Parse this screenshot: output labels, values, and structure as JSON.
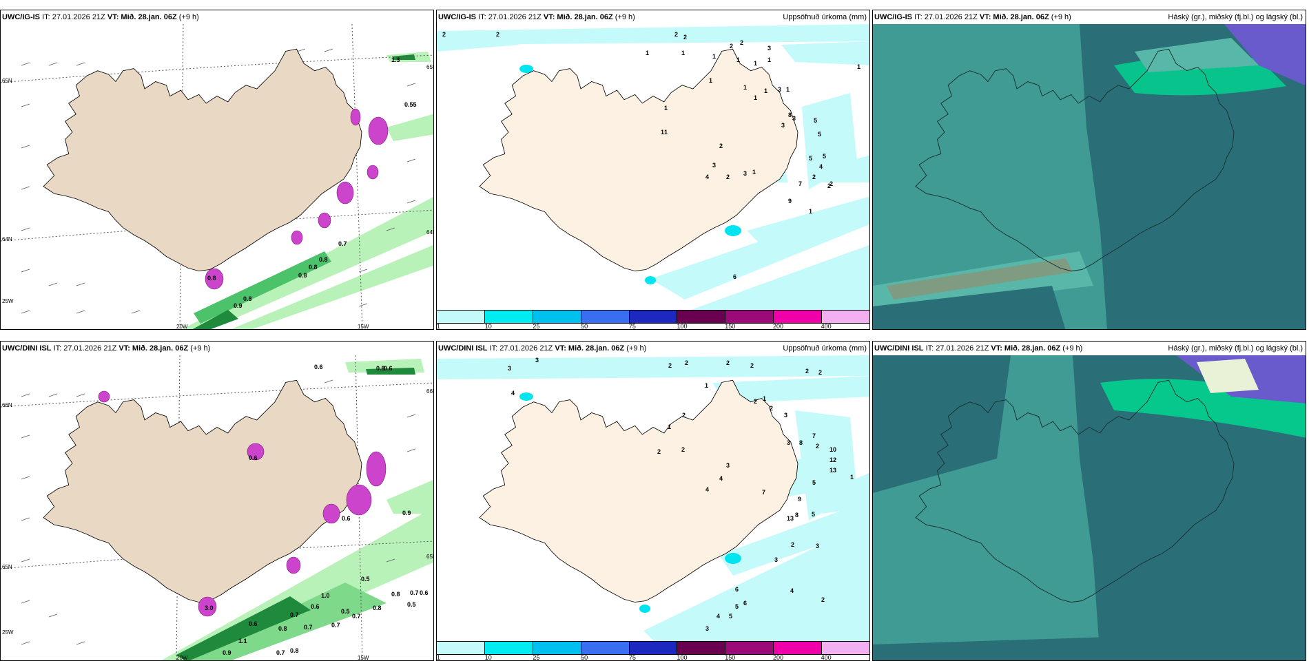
{
  "colors": {
    "land": "#e8d8c4",
    "land_light": "#fdf1e4",
    "sea": "#ffffff",
    "precip_light": "#c5fafa",
    "precip_mid": "#00e4f0",
    "wind_green_light": "#b8f2b8",
    "wind_green_dark": "#1f8a3c",
    "purple": "#cc44cc",
    "teal_bg": "#3f9b93",
    "teal_dark": "#2a6f78",
    "teal_mid": "#58b7a8",
    "green_bright": "#00d890",
    "violet": "#6a5bcc",
    "coast": "#000000"
  },
  "panels": [
    {
      "id": "igis-wind",
      "model": "UWC/IG-IS",
      "it_label": "IT: 27.01.2026 21Z",
      "vt_label": "VT: Mið. 28.jan. 06Z",
      "lead": "(+9 h)",
      "title_right": "",
      "grid_labels": [
        "65N",
        "64N",
        "20W",
        "15W",
        "25W",
        "65N",
        "64N"
      ],
      "values": [
        "1.3",
        "0.55",
        "0.7",
        "0.8",
        "0.8",
        "0.8",
        "0.9",
        "0.8",
        "0.8"
      ]
    },
    {
      "id": "igis-precip",
      "model": "UWC/IG-IS",
      "it_label": "IT: 27.01.2026 21Z",
      "vt_label": "VT: Mið. 28.jan. 06Z",
      "lead": "(+9 h)",
      "title_right": "Uppsöfnuð úrkoma (mm)",
      "values": [
        "2",
        "2",
        "2",
        "2",
        "2",
        "2",
        "3",
        "1",
        "1",
        "1",
        "1",
        "1",
        "1",
        "1",
        "1",
        "1",
        "1",
        "1",
        "1",
        "2",
        "3",
        "1",
        "1",
        "1",
        "3",
        "3",
        "8",
        "5",
        "5",
        "5",
        "4",
        "5",
        "2",
        "3",
        "4",
        "2",
        "3",
        "1",
        "9",
        "7",
        "2",
        "1",
        "6",
        "2"
      ]
    },
    {
      "id": "igis-clouds",
      "model": "UWC/IG-IS",
      "it_label": "IT: 27.01.2026 21Z",
      "vt_label": "VT: Mið. 28.jan. 06Z",
      "lead": "(+9 h)",
      "title_right": "Háský (gr.), miðský (fj.bl.) og lágský (bl.)"
    },
    {
      "id": "dini-wind",
      "model": "UWC/DINI ISL",
      "it_label": "IT: 27.01.2026 21Z",
      "vt_label": "VT: Mið. 28.jan. 06Z",
      "lead": "(+9 h)",
      "title_right": "",
      "grid_labels": [
        "66N",
        "65N",
        "20W",
        "15W",
        "25W",
        "66N",
        "65N"
      ],
      "values": [
        "0.6",
        "0.6",
        "0.8",
        "0.6",
        "0.9",
        "0.6",
        "0.5",
        "0.8",
        "0.7",
        "0.6",
        "1.0",
        "0.6",
        "0.5",
        "0.8",
        "0.7",
        "0.5",
        "0.7",
        "0.8",
        "0.7",
        "1.1",
        "0.6",
        "0.7",
        "0.9",
        "0.7",
        "0.8",
        "3.0"
      ]
    },
    {
      "id": "dini-precip",
      "model": "UWC/DINI ISL",
      "it_label": "IT: 27.01.2026 21Z",
      "vt_label": "VT: Mið. 28.jan. 06Z",
      "lead": "(+9 h)",
      "title_right": "Uppsöfnuð úrkoma (mm)",
      "values": [
        "3",
        "3",
        "2",
        "2",
        "2",
        "2",
        "2",
        "2",
        "4",
        "1",
        "2",
        "1",
        "1",
        "2",
        "2",
        "3",
        "7",
        "8",
        "10",
        "12",
        "13",
        "2",
        "1",
        "2",
        "2",
        "3",
        "3",
        "4",
        "5",
        "4",
        "7",
        "9",
        "8",
        "13",
        "5",
        "2",
        "6",
        "4",
        "5",
        "4",
        "3",
        "5",
        "2",
        "3",
        "3",
        "6"
      ]
    },
    {
      "id": "dini-clouds",
      "model": "UWC/DINI ISL",
      "it_label": "IT: 27.01.2026 21Z",
      "vt_label": "VT: Mið. 28.jan. 06Z",
      "lead": "(+9 h)",
      "title_right": "Háský (gr.), miðský (fj.bl.) og lágský (bl.)"
    }
  ],
  "legend": {
    "labels": [
      "1",
      "10",
      "25",
      "50",
      "75",
      "100",
      "150",
      "200",
      "400"
    ],
    "colors": [
      "#c5fafa",
      "#00ecf0",
      "#00c0f0",
      "#3a6ef0",
      "#1c28c0",
      "#6a0050",
      "#9a0a78",
      "#f000a8",
      "#f2b0f0"
    ]
  }
}
